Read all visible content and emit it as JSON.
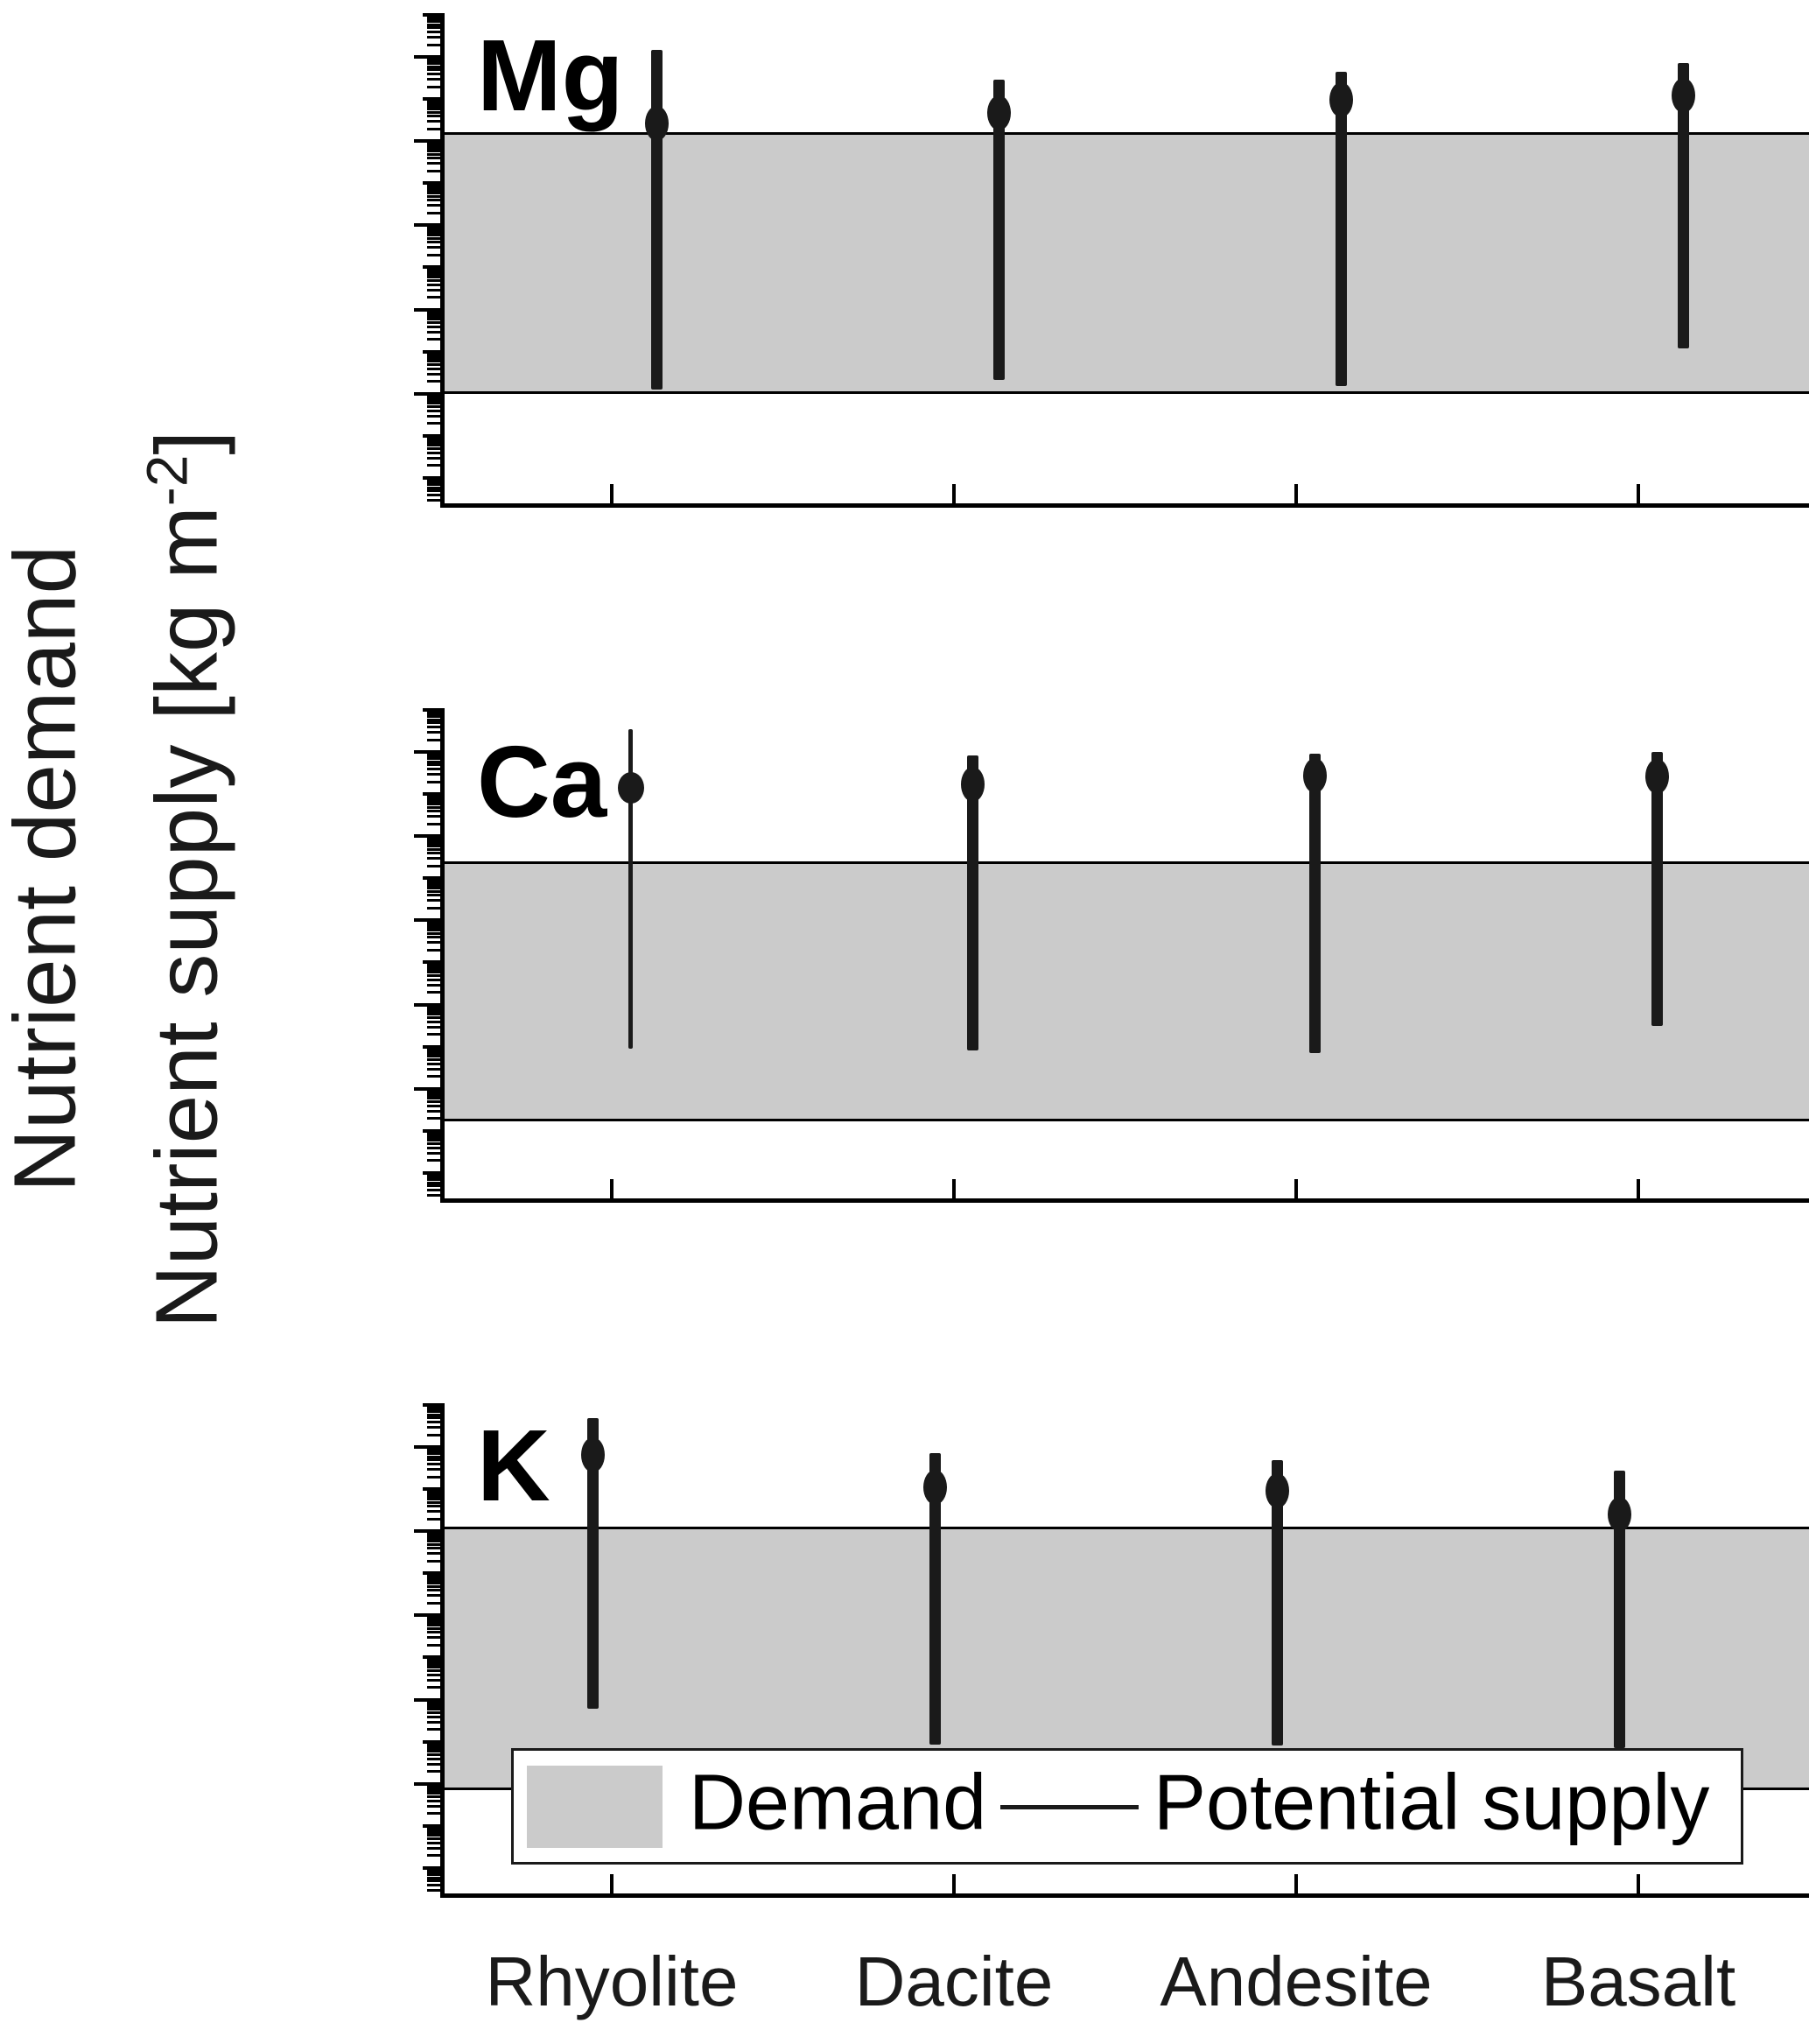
{
  "figure": {
    "ylabel_demand": "Nutrient demand",
    "ylabel_supply_pre": "Nutrient supply [kg m",
    "ylabel_supply_sup": "-2",
    "ylabel_supply_post": "]",
    "background_color": "#ffffff",
    "axis_color": "#000000",
    "demand_fill_color": "#cbcbcb",
    "supply_color": "#1a1a1a",
    "ytick_base": "10"
  },
  "legend": {
    "demand_label": "Demand",
    "supply_label": "Potential supply",
    "position": "bottom"
  },
  "chart_data": [
    {
      "type": "errorbar",
      "panel_label": "Mg",
      "yscale": "log",
      "ylim": [
        2e-10,
        110
      ],
      "y_tick_exponents": [
        1,
        -1,
        -3,
        -5,
        -7
      ],
      "categories": [
        "Rhyolite",
        "Dacite",
        "Andesite",
        "Basalt"
      ],
      "demand_range_kg_m2": [
        1e-07,
        0.163
      ],
      "series": [
        {
          "name": "Potential supply",
          "points": [
            {
              "category": "Rhyolite",
              "low": 1.3e-07,
              "marker": 0.26,
              "high": 15
            },
            {
              "category": "Dacite",
              "low": 2.1e-07,
              "marker": 0.46,
              "high": 2.9
            },
            {
              "category": "Andesite",
              "low": 1.5e-07,
              "marker": 0.96,
              "high": 4.4
            },
            {
              "category": "Basalt",
              "low": 1.2e-06,
              "marker": 1.2,
              "high": 7.1
            }
          ]
        }
      ]
    },
    {
      "type": "errorbar",
      "panel_label": "Ca",
      "yscale": "log",
      "ylim": [
        2e-10,
        110
      ],
      "y_tick_exponents": [
        1,
        -1,
        -3,
        -5,
        -7
      ],
      "categories": [
        "Rhyolite",
        "Dacite",
        "Andesite",
        "Basalt"
      ],
      "demand_range_kg_m2": [
        1.7e-08,
        0.025
      ],
      "series": [
        {
          "name": "Potential supply",
          "points": [
            {
              "category": "Rhyolite",
              "low": 9e-07,
              "marker": 1.4,
              "high": 35,
              "thin_line": true
            },
            {
              "category": "Dacite",
              "low": 7.8e-07,
              "marker": 1.7,
              "high": 8.1
            },
            {
              "category": "Andesite",
              "low": 7e-07,
              "marker": 2.8,
              "high": 8.9
            },
            {
              "category": "Basalt",
              "low": 3e-06,
              "marker": 2.6,
              "high": 9.8
            }
          ]
        }
      ]
    },
    {
      "type": "errorbar",
      "panel_label": "K",
      "yscale": "log",
      "ylim": [
        2e-10,
        110
      ],
      "y_tick_exponents": [
        1,
        -1,
        -3,
        -5,
        -7
      ],
      "categories": [
        "Rhyolite",
        "Dacite",
        "Andesite",
        "Basalt"
      ],
      "demand_range_kg_m2": [
        7e-08,
        0.128
      ],
      "series": [
        {
          "name": "Potential supply",
          "points": [
            {
              "category": "Rhyolite",
              "low": 6.2e-06,
              "marker": 6.6,
              "high": 49
            },
            {
              "category": "Dacite",
              "low": 8.4e-07,
              "marker": 1.1,
              "high": 7.2
            },
            {
              "category": "Andesite",
              "low": 7.8e-07,
              "marker": 0.9,
              "high": 4.8
            },
            {
              "category": "Basalt",
              "low": 7.1e-07,
              "marker": 0.25,
              "high": 2.8
            }
          ]
        }
      ]
    }
  ]
}
